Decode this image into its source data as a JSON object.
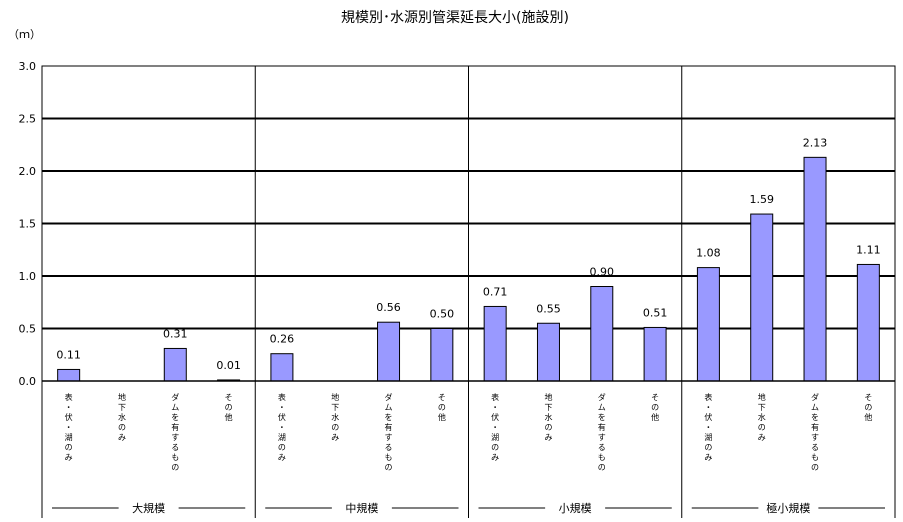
{
  "chart_data": {
    "type": "bar",
    "title": "規模別･水源別管渠延長大小(施設別)",
    "unit": "（ｍ）",
    "ylim": [
      0,
      3.0
    ],
    "yticks": [
      "0.0",
      "0.5",
      "1.0",
      "1.5",
      "2.0",
      "2.5",
      "3.0"
    ],
    "grid": true,
    "bar_color": "#9999ff",
    "groups": [
      {
        "name": "大規模",
        "categories": [
          "表・伏・湖のみ",
          "地下水のみ",
          "ダムを有するもの",
          "その他"
        ],
        "values": [
          0.11,
          null,
          0.31,
          0.01
        ],
        "labels": [
          "0.11",
          "",
          "0.31",
          "0.01"
        ]
      },
      {
        "name": "中規模",
        "categories": [
          "表・伏・湖のみ",
          "地下水のみ",
          "ダムを有するもの",
          "その他"
        ],
        "values": [
          0.26,
          null,
          0.56,
          0.5
        ],
        "labels": [
          "0.26",
          "",
          "0.56",
          "0.50"
        ]
      },
      {
        "name": "小規模",
        "categories": [
          "表・伏・湖のみ",
          "地下水のみ",
          "ダムを有するもの",
          "その他"
        ],
        "values": [
          0.71,
          0.55,
          0.9,
          0.51
        ],
        "labels": [
          "0.71",
          "0.55",
          "0.90",
          "0.51"
        ]
      },
      {
        "name": "極小規模",
        "categories": [
          "表・伏・湖のみ",
          "地下水のみ",
          "ダムを有するもの",
          "その他"
        ],
        "values": [
          1.08,
          1.59,
          2.13,
          1.11
        ],
        "labels": [
          "1.08",
          "1.59",
          "2.13",
          "1.11"
        ]
      }
    ]
  }
}
